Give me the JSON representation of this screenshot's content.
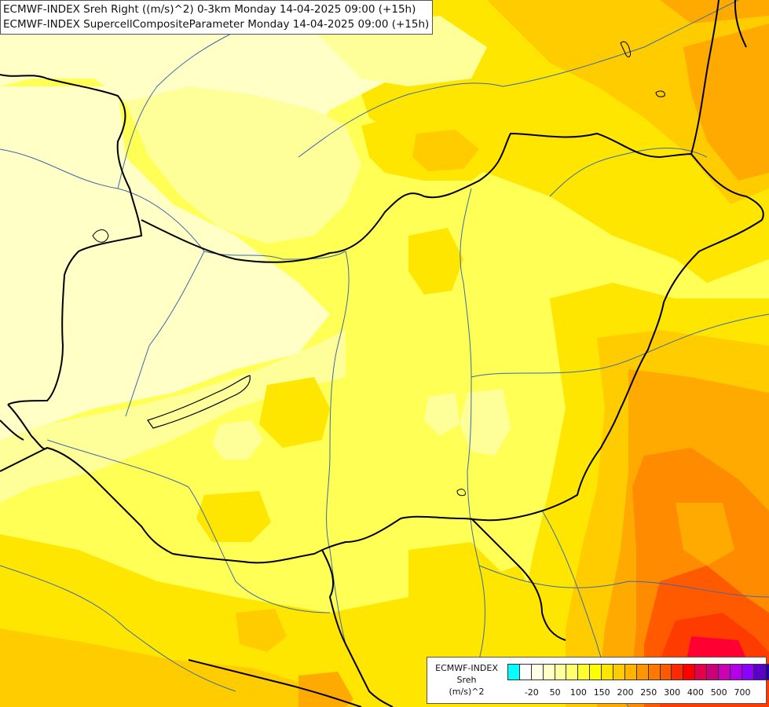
{
  "title": {
    "line1": "ECMWF-INDEX Sreh Right ((m/s)^2) 0-3km Monday 14-04-2025 09:00 (+15h)",
    "line2": "ECMWF-INDEX SupercellCompositeParameter Monday 14-04-2025 09:00 (+15h)"
  },
  "legend": {
    "line1": "ECMWF-INDEX",
    "line2": "Sreh",
    "line3": "(m/s)^2",
    "colors": [
      "#00ffff",
      "#ffffff",
      "#ffffe6",
      "#ffffc8",
      "#ffffa0",
      "#ffff70",
      "#ffff30",
      "#ffff00",
      "#ffe600",
      "#ffcc00",
      "#ffb400",
      "#ff9600",
      "#ff7800",
      "#ff5a00",
      "#ff2800",
      "#ff0000",
      "#e6004b",
      "#cc0078",
      "#cc00b4",
      "#b400e6",
      "#8c00ff",
      "#5a00c8",
      "#2800a0",
      "#00005a"
    ],
    "ticks": [
      {
        "label": "-20",
        "index": 1
      },
      {
        "label": "50",
        "index": 3
      },
      {
        "label": "100",
        "index": 5
      },
      {
        "label": "150",
        "index": 7
      },
      {
        "label": "200",
        "index": 9
      },
      {
        "label": "250",
        "index": 11
      },
      {
        "label": "300",
        "index": 13
      },
      {
        "label": "400",
        "index": 15
      },
      {
        "label": "500",
        "index": 17
      },
      {
        "label": "700",
        "index": 19
      }
    ]
  },
  "colors": {
    "border": "#000000",
    "river": "#3a6aa8",
    "pale": "#ffffc6",
    "light": "#ffff9a",
    "yellow": "#ffff33",
    "gold": "#ffe600",
    "amber": "#ffcc00",
    "orange": "#ffaa00",
    "darkorange": "#ff8c00",
    "red": "#ff3c00",
    "crimson": "#ff0033"
  }
}
